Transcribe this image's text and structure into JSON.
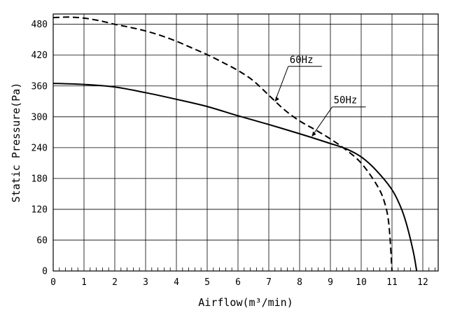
{
  "chart_data": {
    "type": "line",
    "xlabel": "Airflow(m³/min)",
    "ylabel": "Static Pressure(Pa)",
    "xlim": [
      0,
      12.5
    ],
    "ylim": [
      0,
      500
    ],
    "x_ticks": [
      "0",
      "1",
      "2",
      "3",
      "4",
      "5",
      "6",
      "7",
      "8",
      "9",
      "10",
      "11",
      "12"
    ],
    "y_ticks": [
      "0",
      "60",
      "120",
      "180",
      "240",
      "300",
      "360",
      "420",
      "480"
    ],
    "grid": true,
    "series": [
      {
        "name": "60Hz",
        "style": "dashed",
        "points": [
          [
            0,
            493
          ],
          [
            0.5,
            494
          ],
          [
            1,
            492
          ],
          [
            1.5,
            487
          ],
          [
            2,
            480
          ],
          [
            2.5,
            474
          ],
          [
            3,
            467
          ],
          [
            3.5,
            458
          ],
          [
            4,
            447
          ],
          [
            4.5,
            434
          ],
          [
            5,
            421
          ],
          [
            5.5,
            406
          ],
          [
            6,
            390
          ],
          [
            6.5,
            370
          ],
          [
            7,
            342
          ],
          [
            7.5,
            314
          ],
          [
            8,
            292
          ],
          [
            8.5,
            275
          ],
          [
            9,
            257
          ],
          [
            9.5,
            236
          ],
          [
            10,
            210
          ],
          [
            10.5,
            168
          ],
          [
            10.75,
            135
          ],
          [
            10.9,
            90
          ],
          [
            11,
            0
          ]
        ]
      },
      {
        "name": "50Hz",
        "style": "solid",
        "points": [
          [
            0,
            365
          ],
          [
            1,
            363
          ],
          [
            2,
            358
          ],
          [
            3,
            347
          ],
          [
            4,
            334
          ],
          [
            5,
            320
          ],
          [
            6,
            302
          ],
          [
            7,
            285
          ],
          [
            8,
            267
          ],
          [
            9,
            248
          ],
          [
            9.5,
            238
          ],
          [
            10,
            222
          ],
          [
            10.5,
            195
          ],
          [
            11,
            158
          ],
          [
            11.3,
            122
          ],
          [
            11.5,
            85
          ],
          [
            11.7,
            35
          ],
          [
            11.8,
            0
          ]
        ]
      }
    ],
    "annotations": [
      {
        "text": "60Hz",
        "series": "60Hz",
        "point": [
          7.2,
          330
        ]
      },
      {
        "text": "50Hz",
        "series": "50Hz",
        "point": [
          8.4,
          262
        ]
      }
    ]
  }
}
